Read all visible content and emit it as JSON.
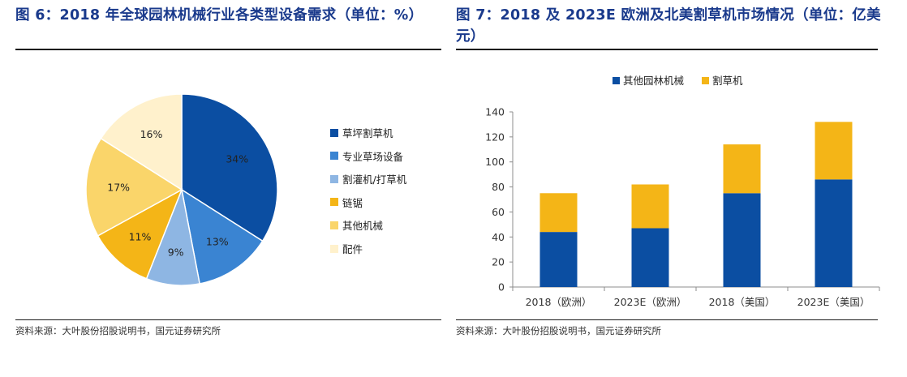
{
  "left": {
    "title": "图 6：2018 年全球园林机械行业各类型设备需求（单位：%）",
    "source": "资料来源：大叶股份招股说明书，国元证券研究所"
  },
  "right": {
    "title": "图 7：2018 及 2023E 欧洲及北美割草机市场情况（单位：亿美元）",
    "source": "资料来源：大叶股份招股说明书，国元证券研究所"
  },
  "colors": {
    "title": "#1a3a8c",
    "dark_blue": "#0b4ea2",
    "mid_blue": "#3a84d2",
    "light_blue": "#8eb6e3",
    "gold": "#f4b517",
    "light_gold": "#fad56a",
    "cream": "#fff1cc"
  },
  "chart_data": [
    {
      "type": "pie",
      "slices": [
        {
          "label": "草坪割草机",
          "value": 34,
          "display": "34%",
          "color": "#0b4ea2"
        },
        {
          "label": "专业草场设备",
          "value": 13,
          "display": "13%",
          "color": "#3a84d2"
        },
        {
          "label": "割灌机/打草机",
          "value": 9,
          "display": "9%",
          "color": "#8eb6e3"
        },
        {
          "label": "链锯",
          "value": 11,
          "display": "11%",
          "color": "#f4b517"
        },
        {
          "label": "其他机械",
          "value": 17,
          "display": "17%",
          "color": "#fad56a"
        },
        {
          "label": "配件",
          "value": 16,
          "display": "16%",
          "color": "#fff1cc"
        }
      ],
      "legend_position": "right"
    },
    {
      "type": "bar",
      "stacked": true,
      "categories": [
        "2018（欧洲）",
        "2023E（欧洲）",
        "2018（美国）",
        "2023E（美国）"
      ],
      "series": [
        {
          "name": "其他园林机械",
          "values": [
            44,
            47,
            75,
            86
          ],
          "color": "#0b4ea2"
        },
        {
          "name": "割草机",
          "values": [
            31,
            35,
            39,
            46
          ],
          "color": "#f4b517"
        }
      ],
      "ylim": [
        0,
        140
      ],
      "yticks": [
        "0",
        "20",
        "40",
        "60",
        "80",
        "100",
        "120",
        "140"
      ],
      "grid": false,
      "legend_position": "top"
    }
  ]
}
